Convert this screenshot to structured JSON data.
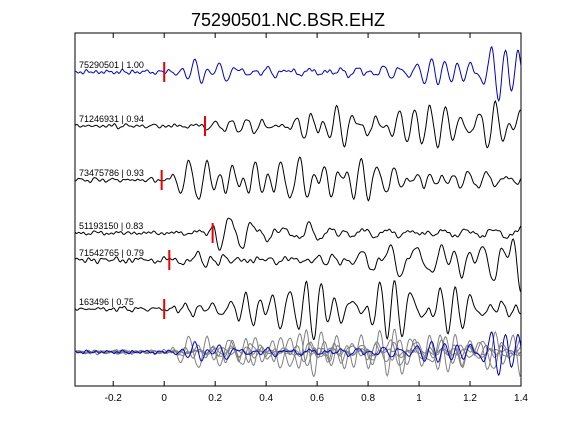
{
  "chart_data": {
    "type": "line",
    "title": "75290501.NC.BSR.EHZ",
    "xlabel": "",
    "ylabel": "",
    "xlim": [
      -0.35,
      1.4
    ],
    "x_ticks": [
      -0.2,
      0,
      0.2,
      0.4,
      0.6,
      0.8,
      1,
      1.2,
      1.4
    ],
    "x_tick_labels": [
      "-0.2",
      "0",
      "0.2",
      "0.4",
      "0.6",
      "0.8",
      "1",
      "1.2",
      "1.4"
    ],
    "grid": false,
    "colors": {
      "reference": "#0000cc",
      "traces": "#000000",
      "overlay": "#808080",
      "pick": "#ee0000",
      "axes": "#000000"
    },
    "series": [
      {
        "label": "75290501 | 1.00",
        "color": "#0000cc",
        "pick_x": 0.0,
        "seed": 3,
        "onset": 0.0
      },
      {
        "label": "71246931 | 0.94",
        "color": "#000000",
        "pick_x": 0.16,
        "seed": 11,
        "onset": 0.05
      },
      {
        "label": "73475786 | 0.93",
        "color": "#000000",
        "pick_x": -0.01,
        "seed": 19,
        "onset": 0.0
      },
      {
        "label": "51193150 | 0.83",
        "color": "#000000",
        "pick_x": 0.19,
        "seed": 27,
        "onset": 0.08
      },
      {
        "label": "71542765 | 0.79",
        "color": "#000000",
        "pick_x": 0.02,
        "seed": 35,
        "onset": 0.02
      },
      {
        "label": "163496 | 0.75",
        "color": "#000000",
        "pick_x": 0.0,
        "seed": 43,
        "onset": 0.0
      }
    ],
    "overlay": {
      "type": "stack",
      "description": ""
    }
  }
}
